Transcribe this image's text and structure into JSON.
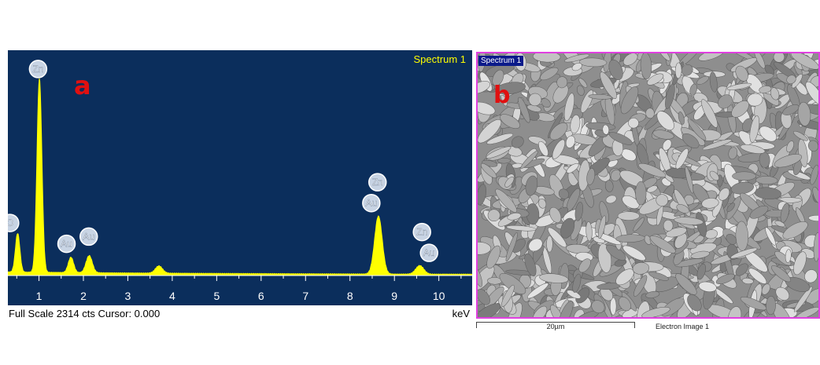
{
  "chart_data": {
    "type": "line",
    "title": "Spectrum 1",
    "panel_label": "a",
    "xlabel": "keV",
    "footer": "Full Scale 2314 cts Cursor: 0.000",
    "xlim": [
      0.3,
      10.75
    ],
    "ylim": [
      0,
      2314
    ],
    "xticks": [
      "1",
      "2",
      "3",
      "4",
      "5",
      "6",
      "7",
      "8",
      "9",
      "10"
    ],
    "peaks": [
      {
        "x": 0.52,
        "y": 430,
        "width": 0.05
      },
      {
        "x": 1.01,
        "y": 2140,
        "width": 0.055
      },
      {
        "x": 1.72,
        "y": 170,
        "width": 0.06
      },
      {
        "x": 2.13,
        "y": 190,
        "width": 0.07
      },
      {
        "x": 3.7,
        "y": 80,
        "width": 0.08
      },
      {
        "x": 8.64,
        "y": 640,
        "width": 0.085
      },
      {
        "x": 9.57,
        "y": 95,
        "width": 0.09
      }
    ],
    "background": 30,
    "annotations": [
      {
        "label": "O",
        "x": 0.35,
        "y": 580
      },
      {
        "label": "Zn",
        "x": 0.98,
        "y": 2280
      },
      {
        "label": "Au",
        "x": 1.62,
        "y": 350
      },
      {
        "label": "Au",
        "x": 2.12,
        "y": 430
      },
      {
        "label": "Zn",
        "x": 8.62,
        "y": 1030
      },
      {
        "label": "Au",
        "x": 8.48,
        "y": 800
      },
      {
        "label": "Zn",
        "x": 9.62,
        "y": 480
      },
      {
        "label": "Au",
        "x": 9.78,
        "y": 250
      }
    ],
    "colors": {
      "background": "#0b2e5c",
      "spectrum": "#ffff00",
      "title": "#ffff00",
      "panel_label": "#e01010"
    }
  },
  "sem": {
    "spectrum_tag": "Spectrum 1",
    "panel_label": "b",
    "scale_label": "20µm",
    "image_label": "Electron Image 1"
  }
}
